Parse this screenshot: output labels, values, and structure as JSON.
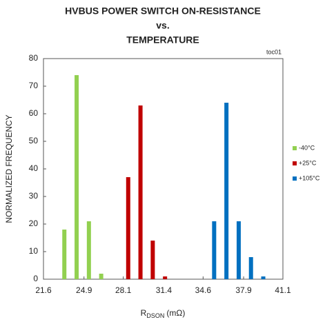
{
  "chart_data": {
    "type": "bar",
    "title": [
      "HVBUS POWER SWITCH ON-RESISTANCE",
      "vs.",
      "TEMPERATURE"
    ],
    "annotation": "toc01",
    "ylabel": "NORMALIZED  FREQUENCY",
    "xlabel": {
      "main": "R",
      "sub": "DSON",
      "unit": "(mΩ)"
    },
    "xlim": [
      21.6,
      41.1
    ],
    "xticks": [
      21.6,
      24.9,
      28.1,
      31.4,
      34.6,
      37.9,
      41.1
    ],
    "ylim": [
      0,
      80
    ],
    "yticks": [
      0,
      10,
      20,
      30,
      40,
      50,
      60,
      70,
      80
    ],
    "legend": "right",
    "series": [
      {
        "name": "-40°C",
        "color": "#92d050",
        "x": [
          23.3,
          24.3,
          25.3,
          26.3
        ],
        "values": [
          18,
          74,
          21,
          2
        ]
      },
      {
        "name": "+25°C",
        "color": "#c00000",
        "x": [
          28.5,
          29.5,
          30.5,
          31.5
        ],
        "values": [
          37,
          63,
          14,
          1
        ]
      },
      {
        "name": "+105°C",
        "color": "#0070c0",
        "x": [
          35.5,
          36.5,
          37.5,
          38.5,
          39.5
        ],
        "values": [
          21,
          64,
          21,
          8,
          1
        ]
      }
    ]
  }
}
